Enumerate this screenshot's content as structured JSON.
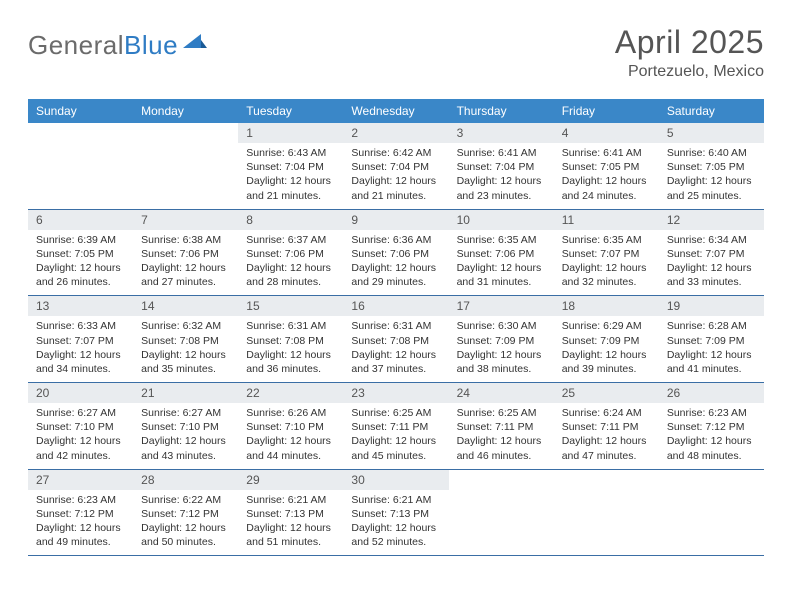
{
  "brand": {
    "part1": "General",
    "part2": "Blue"
  },
  "title": "April 2025",
  "location": "Portezuelo, Mexico",
  "colors": {
    "header_bg": "#3a87c8",
    "header_fg": "#ffffff",
    "daynum_bg": "#e9ecef",
    "row_border": "#3a6ea5",
    "brand_gray": "#6b6b6b",
    "brand_blue": "#2f7cc4",
    "text": "#333333"
  },
  "weekdays": [
    "Sunday",
    "Monday",
    "Tuesday",
    "Wednesday",
    "Thursday",
    "Friday",
    "Saturday"
  ],
  "weeks": [
    [
      null,
      null,
      {
        "n": "1",
        "sr": "6:43 AM",
        "ss": "7:04 PM",
        "dl": "12 hours and 21 minutes."
      },
      {
        "n": "2",
        "sr": "6:42 AM",
        "ss": "7:04 PM",
        "dl": "12 hours and 21 minutes."
      },
      {
        "n": "3",
        "sr": "6:41 AM",
        "ss": "7:04 PM",
        "dl": "12 hours and 23 minutes."
      },
      {
        "n": "4",
        "sr": "6:41 AM",
        "ss": "7:05 PM",
        "dl": "12 hours and 24 minutes."
      },
      {
        "n": "5",
        "sr": "6:40 AM",
        "ss": "7:05 PM",
        "dl": "12 hours and 25 minutes."
      }
    ],
    [
      {
        "n": "6",
        "sr": "6:39 AM",
        "ss": "7:05 PM",
        "dl": "12 hours and 26 minutes."
      },
      {
        "n": "7",
        "sr": "6:38 AM",
        "ss": "7:06 PM",
        "dl": "12 hours and 27 minutes."
      },
      {
        "n": "8",
        "sr": "6:37 AM",
        "ss": "7:06 PM",
        "dl": "12 hours and 28 minutes."
      },
      {
        "n": "9",
        "sr": "6:36 AM",
        "ss": "7:06 PM",
        "dl": "12 hours and 29 minutes."
      },
      {
        "n": "10",
        "sr": "6:35 AM",
        "ss": "7:06 PM",
        "dl": "12 hours and 31 minutes."
      },
      {
        "n": "11",
        "sr": "6:35 AM",
        "ss": "7:07 PM",
        "dl": "12 hours and 32 minutes."
      },
      {
        "n": "12",
        "sr": "6:34 AM",
        "ss": "7:07 PM",
        "dl": "12 hours and 33 minutes."
      }
    ],
    [
      {
        "n": "13",
        "sr": "6:33 AM",
        "ss": "7:07 PM",
        "dl": "12 hours and 34 minutes."
      },
      {
        "n": "14",
        "sr": "6:32 AM",
        "ss": "7:08 PM",
        "dl": "12 hours and 35 minutes."
      },
      {
        "n": "15",
        "sr": "6:31 AM",
        "ss": "7:08 PM",
        "dl": "12 hours and 36 minutes."
      },
      {
        "n": "16",
        "sr": "6:31 AM",
        "ss": "7:08 PM",
        "dl": "12 hours and 37 minutes."
      },
      {
        "n": "17",
        "sr": "6:30 AM",
        "ss": "7:09 PM",
        "dl": "12 hours and 38 minutes."
      },
      {
        "n": "18",
        "sr": "6:29 AM",
        "ss": "7:09 PM",
        "dl": "12 hours and 39 minutes."
      },
      {
        "n": "19",
        "sr": "6:28 AM",
        "ss": "7:09 PM",
        "dl": "12 hours and 41 minutes."
      }
    ],
    [
      {
        "n": "20",
        "sr": "6:27 AM",
        "ss": "7:10 PM",
        "dl": "12 hours and 42 minutes."
      },
      {
        "n": "21",
        "sr": "6:27 AM",
        "ss": "7:10 PM",
        "dl": "12 hours and 43 minutes."
      },
      {
        "n": "22",
        "sr": "6:26 AM",
        "ss": "7:10 PM",
        "dl": "12 hours and 44 minutes."
      },
      {
        "n": "23",
        "sr": "6:25 AM",
        "ss": "7:11 PM",
        "dl": "12 hours and 45 minutes."
      },
      {
        "n": "24",
        "sr": "6:25 AM",
        "ss": "7:11 PM",
        "dl": "12 hours and 46 minutes."
      },
      {
        "n": "25",
        "sr": "6:24 AM",
        "ss": "7:11 PM",
        "dl": "12 hours and 47 minutes."
      },
      {
        "n": "26",
        "sr": "6:23 AM",
        "ss": "7:12 PM",
        "dl": "12 hours and 48 minutes."
      }
    ],
    [
      {
        "n": "27",
        "sr": "6:23 AM",
        "ss": "7:12 PM",
        "dl": "12 hours and 49 minutes."
      },
      {
        "n": "28",
        "sr": "6:22 AM",
        "ss": "7:12 PM",
        "dl": "12 hours and 50 minutes."
      },
      {
        "n": "29",
        "sr": "6:21 AM",
        "ss": "7:13 PM",
        "dl": "12 hours and 51 minutes."
      },
      {
        "n": "30",
        "sr": "6:21 AM",
        "ss": "7:13 PM",
        "dl": "12 hours and 52 minutes."
      },
      null,
      null,
      null
    ]
  ],
  "labels": {
    "sunrise": "Sunrise:",
    "sunset": "Sunset:",
    "daylight": "Daylight:"
  }
}
